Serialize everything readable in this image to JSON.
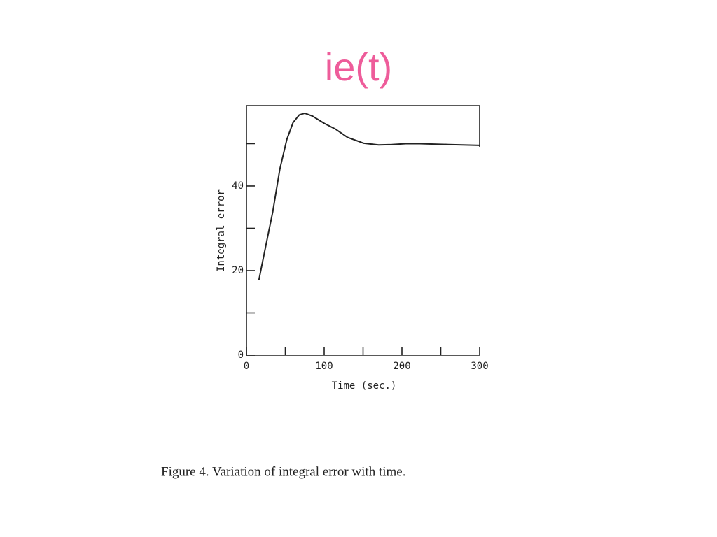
{
  "title": "ie(t)",
  "chart_data": {
    "type": "line",
    "caption": "Figure 4. Variation of integral error with time.",
    "xlabel": "Time (sec.)",
    "ylabel": "Integral error",
    "x": [
      16,
      25,
      34,
      43,
      52,
      60,
      68,
      75,
      85,
      100,
      115,
      130,
      151,
      170,
      187,
      205,
      223,
      260,
      300
    ],
    "values": [
      17.8,
      26,
      34,
      44,
      51,
      55,
      56.8,
      57.2,
      56.5,
      54.8,
      53.4,
      51.5,
      50.1,
      49.7,
      49.8,
      50,
      50,
      49.8,
      49.6
    ],
    "color": "#222222",
    "xlim": [
      0,
      300
    ],
    "ylim": [
      0,
      59
    ],
    "xticks": [
      0,
      100,
      200,
      300
    ],
    "minor_xticks": [
      50,
      150,
      250
    ],
    "yticks": [
      0,
      20,
      40
    ],
    "minor_yticks": [
      10,
      30,
      50
    ]
  }
}
